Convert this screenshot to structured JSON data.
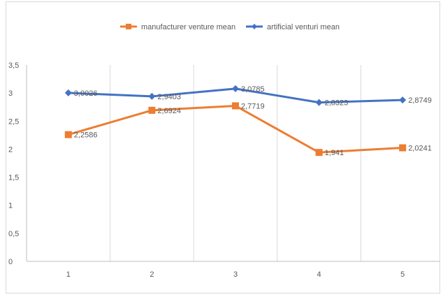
{
  "chart_data": {
    "type": "line",
    "title": "",
    "xlabel": "",
    "ylabel": "",
    "categories": [
      "1",
      "2",
      "3",
      "4",
      "5"
    ],
    "ylim": [
      0,
      3.5
    ],
    "y_ticks": [
      "0",
      "0,5",
      "1",
      "1,5",
      "2",
      "2,5",
      "3",
      "3,5"
    ],
    "grid": "vertical",
    "legend_position": "top",
    "series": [
      {
        "name": "manufacturer venture mean",
        "color": "#ed7d31",
        "marker": "square",
        "values": [
          2.2586,
          2.6924,
          2.7719,
          1.941,
          2.0241
        ],
        "labels": [
          "2,2586",
          "2,6924",
          "2,7719",
          "1,941",
          "2,0241"
        ]
      },
      {
        "name": "artificial venturi mean",
        "color": "#4472c4",
        "marker": "diamond",
        "values": [
          3.0026,
          2.9403,
          3.0785,
          2.8323,
          2.8749
        ],
        "labels": [
          "3,0026",
          "2,9403",
          "3,0785",
          "2,8323",
          "2,8749"
        ]
      }
    ]
  }
}
